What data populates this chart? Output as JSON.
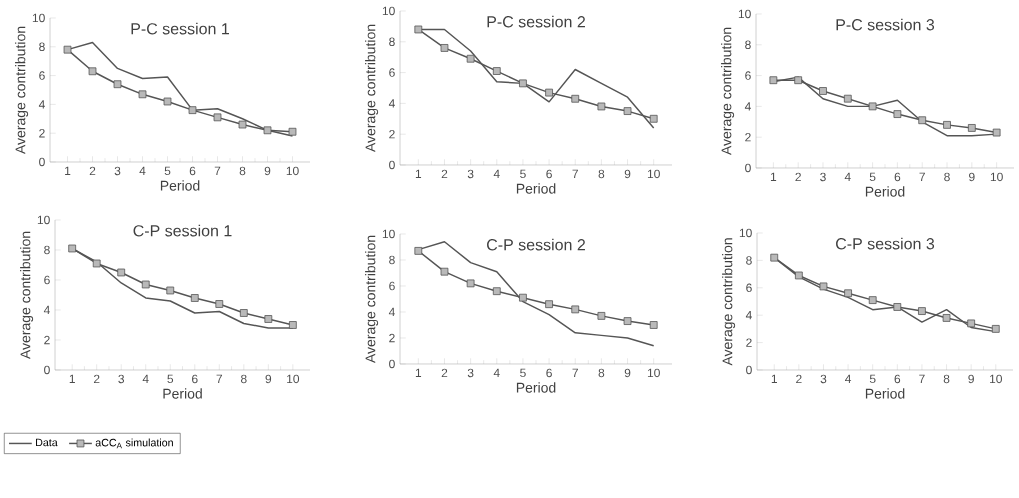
{
  "chart_data": [
    {
      "type": "line",
      "title": "P-C session 1",
      "xlabel": "Period",
      "ylabel": "Average contribution",
      "categories": [
        "1",
        "2",
        "3",
        "4",
        "5",
        "6",
        "7",
        "8",
        "9",
        "10"
      ],
      "ylim": [
        0,
        10
      ],
      "yticks": [
        0,
        2,
        4,
        6,
        8,
        10
      ],
      "series": [
        {
          "color": "#555555",
          "marker": "none",
          "values": [
            7.8,
            8.3,
            6.5,
            5.8,
            5.9,
            3.6,
            3.7,
            3.0,
            2.2,
            1.8
          ]
        },
        {
          "color": "#555555",
          "marker": "square",
          "values": [
            7.8,
            6.3,
            5.4,
            4.7,
            4.2,
            3.6,
            3.1,
            2.6,
            2.2,
            2.1
          ]
        }
      ]
    },
    {
      "type": "line",
      "title": "P-C session 2",
      "xlabel": "Period",
      "ylabel": "Average contribution",
      "categories": [
        "1",
        "2",
        "3",
        "4",
        "5",
        "6",
        "7",
        "8",
        "9",
        "10"
      ],
      "ylim": [
        0,
        10
      ],
      "yticks": [
        0,
        2,
        4,
        6,
        8,
        10
      ],
      "series": [
        {
          "color": "#555555",
          "marker": "none",
          "values": [
            8.8,
            8.8,
            7.4,
            5.4,
            5.3,
            4.1,
            6.2,
            5.3,
            4.4,
            2.4
          ]
        },
        {
          "color": "#555555",
          "marker": "square",
          "values": [
            8.8,
            7.6,
            6.9,
            6.1,
            5.3,
            4.7,
            4.3,
            3.8,
            3.5,
            3.0
          ]
        }
      ]
    },
    {
      "type": "line",
      "title": "P-C session 3",
      "xlabel": "Period",
      "ylabel": "Average contribution",
      "categories": [
        "1",
        "2",
        "3",
        "4",
        "5",
        "6",
        "7",
        "8",
        "9",
        "10"
      ],
      "ylim": [
        0,
        10
      ],
      "yticks": [
        0,
        2,
        4,
        6,
        8,
        10
      ],
      "series": [
        {
          "color": "#555555",
          "marker": "none",
          "values": [
            5.6,
            5.9,
            4.5,
            4.0,
            4.0,
            4.4,
            3.0,
            2.1,
            2.1,
            2.2
          ]
        },
        {
          "color": "#555555",
          "marker": "square",
          "values": [
            5.7,
            5.7,
            5.0,
            4.5,
            4.0,
            3.5,
            3.1,
            2.8,
            2.6,
            2.3
          ]
        }
      ]
    },
    {
      "type": "line",
      "title": "C-P session 1",
      "xlabel": "Period",
      "ylabel": "Average contribution",
      "categories": [
        "1",
        "2",
        "3",
        "4",
        "5",
        "6",
        "7",
        "8",
        "9",
        "10"
      ],
      "ylim": [
        0,
        10
      ],
      "yticks": [
        0,
        2,
        4,
        6,
        8,
        10
      ],
      "legend": "bottom left",
      "series": [
        {
          "name": "Data",
          "color": "#555555",
          "marker": "none",
          "values": [
            8.1,
            7.2,
            5.8,
            4.8,
            4.6,
            3.8,
            3.9,
            3.1,
            2.8,
            2.8
          ]
        },
        {
          "name": "aCC$_{A}$ simulation",
          "color": "#555555",
          "marker": "square",
          "values": [
            8.1,
            7.1,
            6.5,
            5.7,
            5.3,
            4.8,
            4.4,
            3.8,
            3.4,
            3.0
          ]
        }
      ]
    },
    {
      "type": "line",
      "title": "C-P session 2",
      "xlabel": "Period",
      "ylabel": "Average contribution",
      "categories": [
        "1",
        "2",
        "3",
        "4",
        "5",
        "6",
        "7",
        "8",
        "9",
        "10"
      ],
      "ylim": [
        0,
        10
      ],
      "yticks": [
        0,
        2,
        4,
        6,
        8,
        10
      ],
      "series": [
        {
          "color": "#555555",
          "marker": "none",
          "values": [
            8.8,
            9.4,
            7.8,
            7.1,
            4.8,
            3.8,
            2.4,
            2.2,
            2.0,
            1.4
          ]
        },
        {
          "color": "#555555",
          "marker": "square",
          "values": [
            8.7,
            7.1,
            6.2,
            5.6,
            5.1,
            4.6,
            4.2,
            3.7,
            3.3,
            3.0
          ]
        }
      ]
    },
    {
      "type": "line",
      "title": "C-P session 3",
      "xlabel": "Period",
      "ylabel": "Average contribution",
      "categories": [
        "1",
        "2",
        "3",
        "4",
        "5",
        "6",
        "7",
        "8",
        "9",
        "10"
      ],
      "ylim": [
        0,
        10
      ],
      "yticks": [
        0,
        2,
        4,
        6,
        8,
        10
      ],
      "series": [
        {
          "color": "#555555",
          "marker": "none",
          "values": [
            8.2,
            6.8,
            5.9,
            5.3,
            4.4,
            4.6,
            3.5,
            4.4,
            3.1,
            2.8
          ]
        },
        {
          "color": "#555555",
          "marker": "square",
          "values": [
            8.2,
            6.9,
            6.1,
            5.6,
            5.1,
            4.6,
            4.3,
            3.8,
            3.4,
            3.0
          ]
        }
      ]
    }
  ]
}
